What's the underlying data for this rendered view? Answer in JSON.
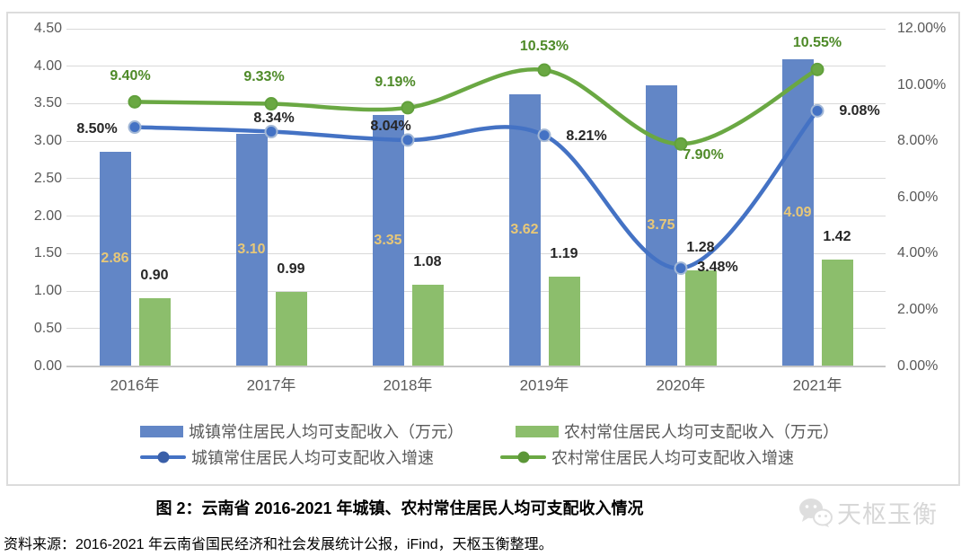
{
  "title": "图 2：云南省 2016-2021 年城镇、农村常住居民人均可支配收入情况",
  "source": "资料来源：2016-2021 年云南省国民经济和社会发展统计公报，iFind，天枢玉衡整理。",
  "watermark": {
    "text": "天枢玉衡",
    "icon": "chat-bubbles-icon"
  },
  "chart_data": {
    "type": "combo-bar-line",
    "categories": [
      "2016年",
      "2017年",
      "2018年",
      "2019年",
      "2020年",
      "2021年"
    ],
    "left_axis": {
      "min": 0,
      "max": 4.5,
      "step": 0.5,
      "ticks": [
        "4.50",
        "4.00",
        "3.50",
        "3.00",
        "2.50",
        "2.00",
        "1.50",
        "1.00",
        "0.50",
        "0.00"
      ]
    },
    "right_axis": {
      "min": 0,
      "max": 12,
      "step": 2,
      "ticks": [
        "12.00%",
        "10.00%",
        "8.00%",
        "6.00%",
        "4.00%",
        "2.00%",
        "0.00%"
      ]
    },
    "grid": "horizontal",
    "legend_position": "bottom",
    "series": [
      {
        "name": "城镇常住居民人均可支配收入（万元）",
        "type": "bar",
        "axis": "left",
        "color": "#6286C6",
        "label_color": "#E8C878",
        "values": [
          2.86,
          3.1,
          3.35,
          3.62,
          3.75,
          4.09
        ],
        "labels": [
          "2.86",
          "3.10",
          "3.35",
          "3.62",
          "3.75",
          "4.09"
        ]
      },
      {
        "name": "农村常住居民人均可支配收入（万元）",
        "type": "bar",
        "axis": "left",
        "color": "#8CBE6C",
        "label_color": "#262626",
        "values": [
          0.9,
          0.99,
          1.08,
          1.19,
          1.28,
          1.42
        ],
        "labels": [
          "0.90",
          "0.99",
          "1.08",
          "1.19",
          "1.28",
          "1.42"
        ]
      },
      {
        "name": "城镇常住居民人均可支配收入增速",
        "type": "line",
        "axis": "right",
        "color": "#4472C4",
        "marker_stroke": "#A3B8D6",
        "label_color": "#262626",
        "values": [
          8.5,
          8.34,
          8.04,
          8.21,
          3.48,
          9.08
        ],
        "labels": [
          "8.50%",
          "8.34%",
          "8.04%",
          "8.21%",
          "3.48%",
          "9.08%"
        ]
      },
      {
        "name": "农村常住居民人均可支配收入增速",
        "type": "line",
        "axis": "right",
        "color": "#6AA843",
        "marker_stroke": "#61A03C",
        "label_color": "#4E8A28",
        "values": [
          9.4,
          9.33,
          9.19,
          10.53,
          7.9,
          10.55
        ],
        "labels": [
          "9.40%",
          "9.33%",
          "9.19%",
          "10.53%",
          "7.90%",
          "10.55%"
        ]
      }
    ]
  }
}
